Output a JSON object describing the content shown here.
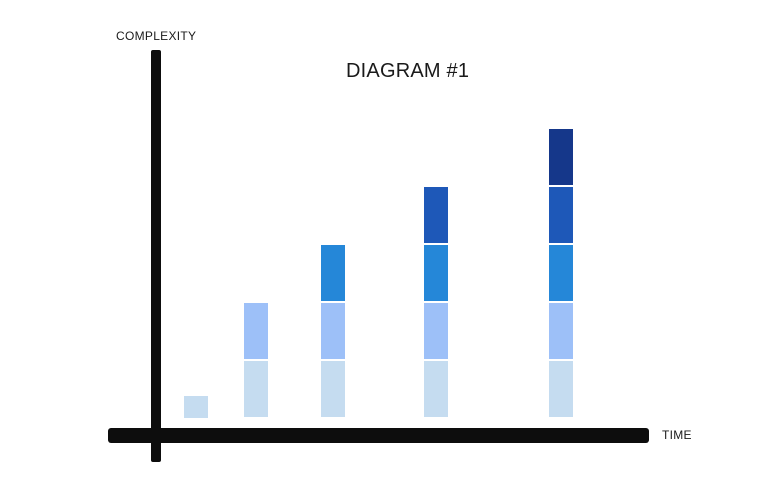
{
  "chart_data": {
    "type": "bar",
    "stacked": true,
    "title": "DIAGRAM #1",
    "xlabel": "TIME",
    "ylabel": "COMPLEXITY",
    "categories": [
      "",
      "",
      "",
      "",
      ""
    ],
    "values": [
      1,
      2,
      3,
      4,
      5
    ],
    "segment_colors": [
      "#c5dcf0",
      "#9dc0f8",
      "#2587d8",
      "#1e58b8",
      "#15378a"
    ],
    "ylim": [
      0,
      5.6
    ],
    "grid": false
  }
}
